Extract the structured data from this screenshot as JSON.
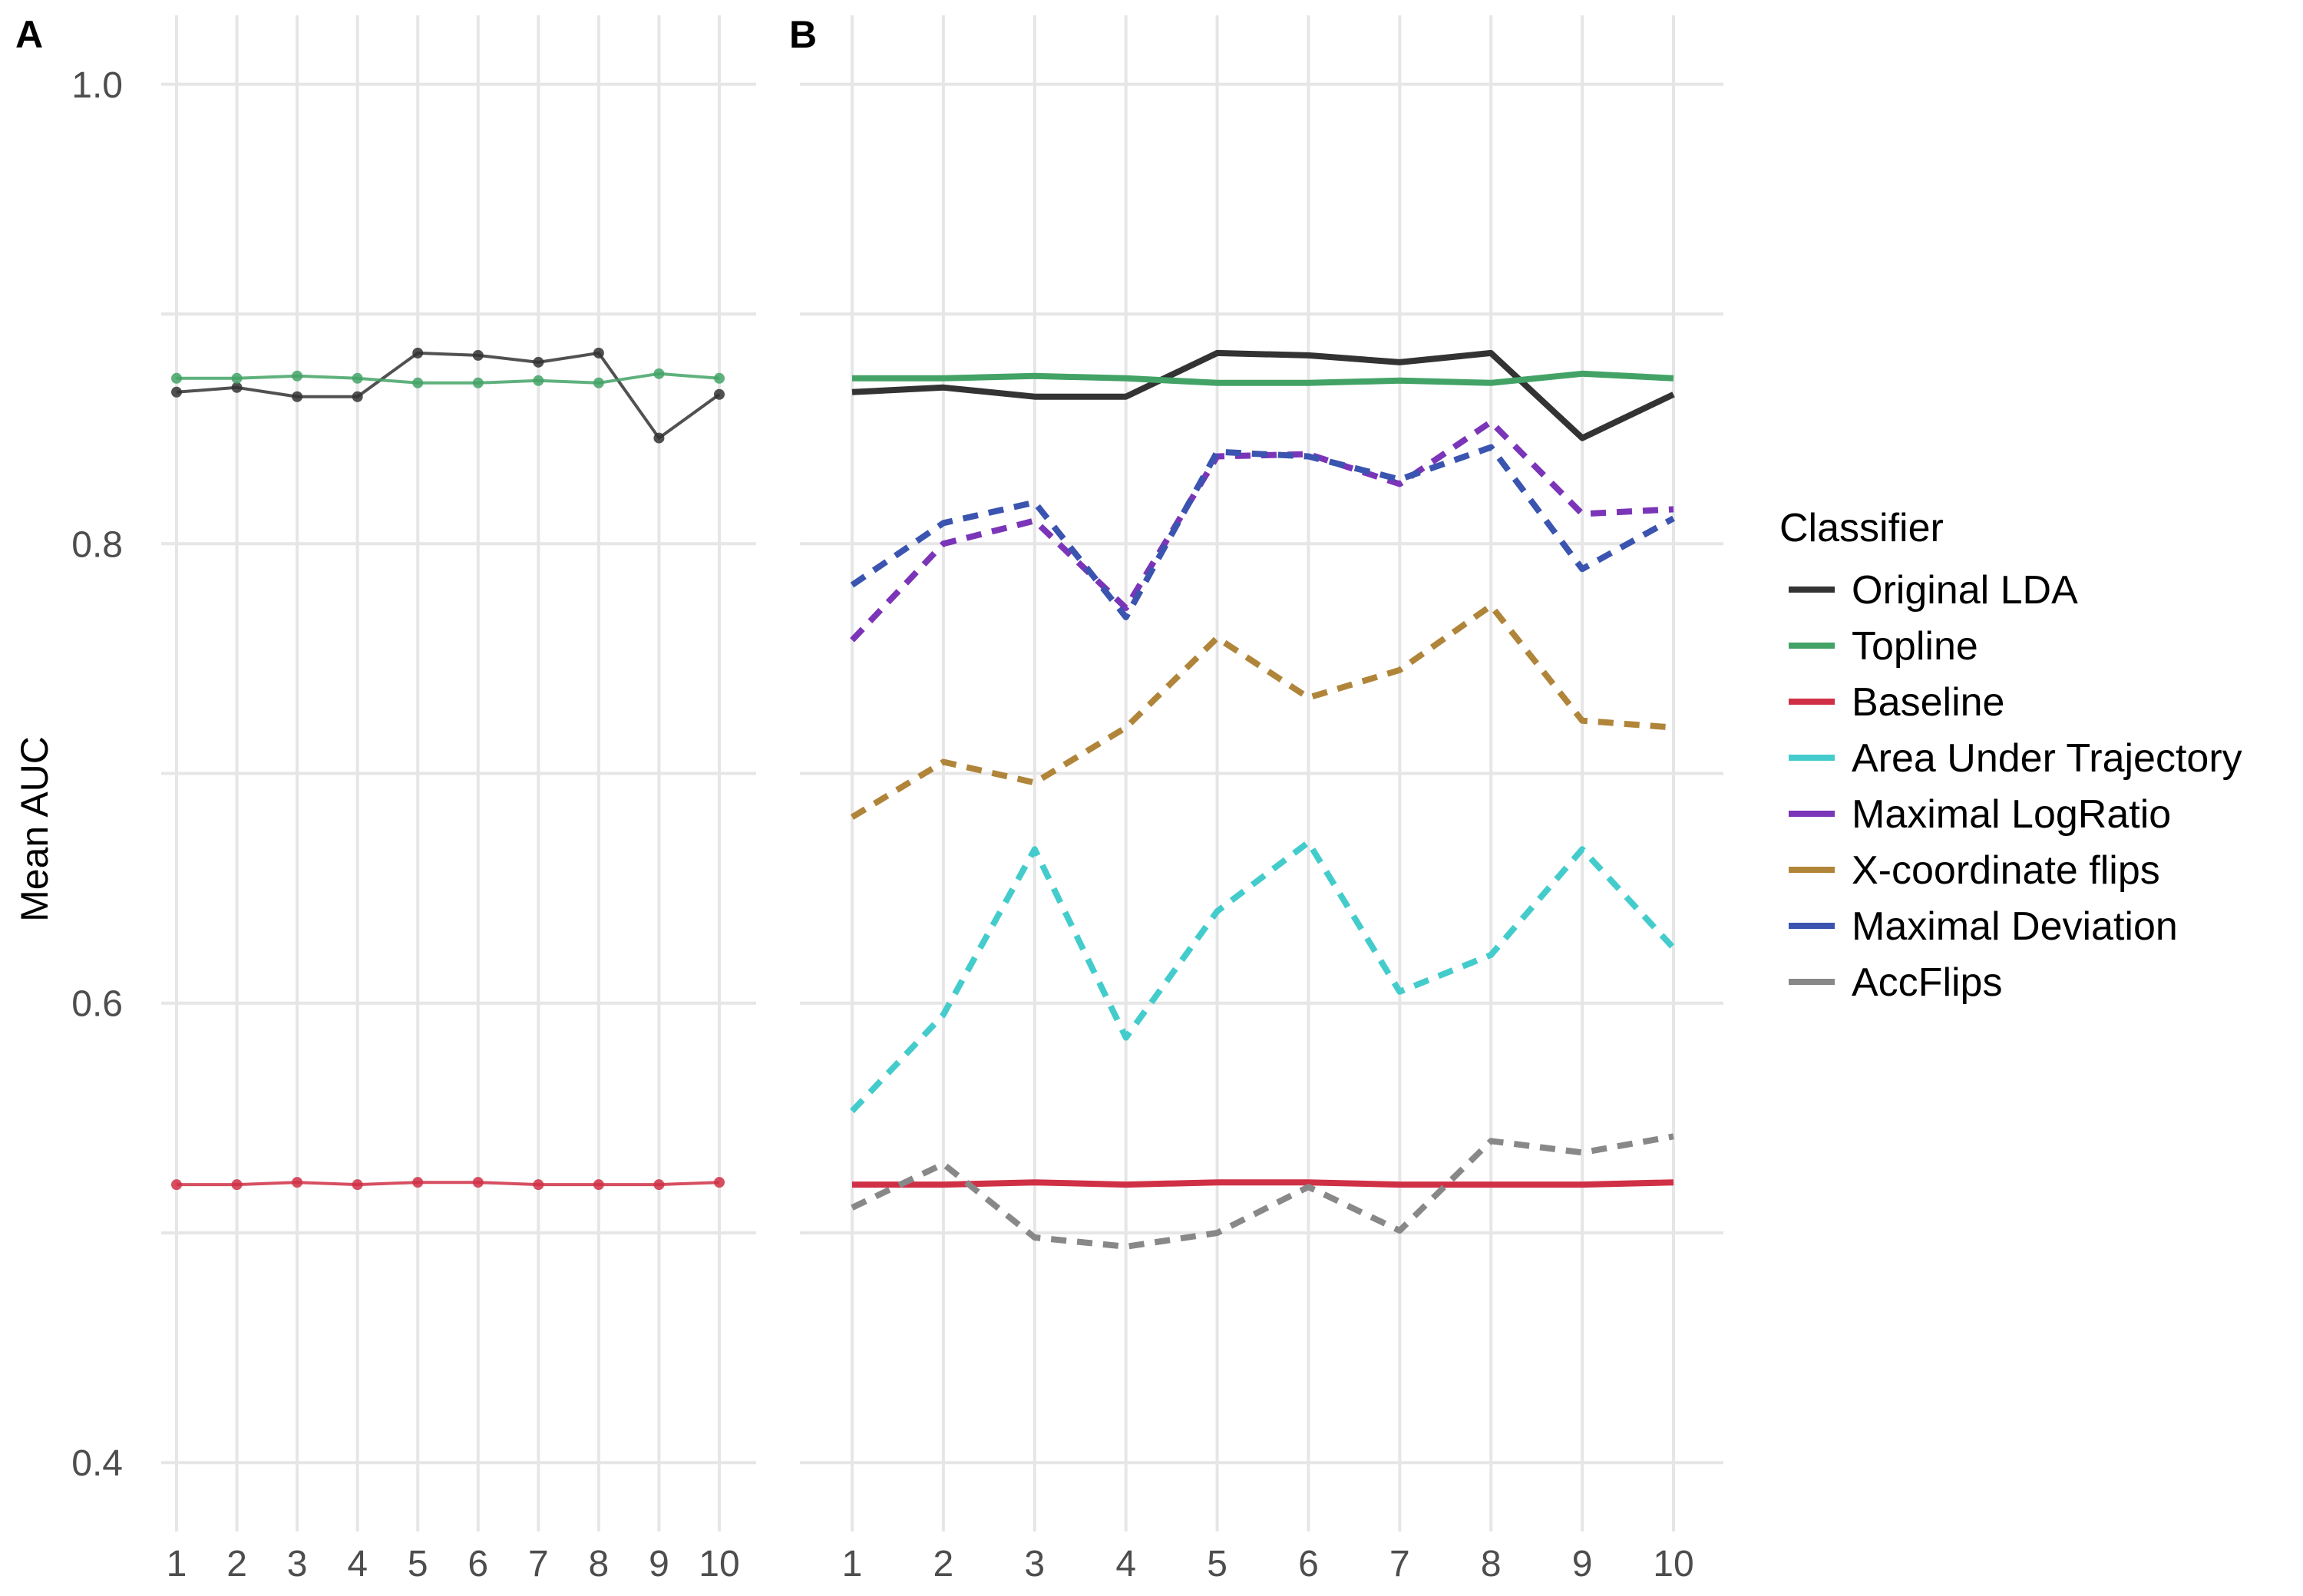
{
  "chart_data": [
    {
      "panel": "A",
      "type": "line",
      "xlabel": "",
      "ylabel": "Mean AUC",
      "ylim": [
        0.37,
        1.03
      ],
      "yticks": [
        0.4,
        0.6,
        0.8,
        1.0
      ],
      "ytick_labels": [
        "0.4",
        "0.6",
        "0.8",
        "1.0"
      ],
      "x": [
        1,
        2,
        3,
        4,
        5,
        6,
        7,
        8,
        9,
        10
      ],
      "xtick_labels": [
        "1",
        "2",
        "3",
        "4",
        "5",
        "6",
        "7",
        "8",
        "9",
        "10"
      ],
      "grid": true,
      "series": [
        {
          "name": "Original LDA",
          "color": "#333333",
          "values": [
            0.866,
            0.868,
            0.864,
            0.864,
            0.883,
            0.882,
            0.879,
            0.883,
            0.846,
            0.865
          ]
        },
        {
          "name": "Topline",
          "color": "#43a366",
          "values": [
            0.872,
            0.872,
            0.873,
            0.872,
            0.87,
            0.87,
            0.871,
            0.87,
            0.874,
            0.872
          ]
        },
        {
          "name": "Baseline",
          "color": "#d03045",
          "values": [
            0.521,
            0.521,
            0.522,
            0.521,
            0.522,
            0.522,
            0.521,
            0.521,
            0.521,
            0.522
          ]
        }
      ]
    },
    {
      "panel": "B",
      "type": "line",
      "xlabel": "",
      "ylabel": "",
      "ylim": [
        0.37,
        1.03
      ],
      "yticks": [
        0.4,
        0.6,
        0.8,
        1.0
      ],
      "x": [
        1,
        2,
        3,
        4,
        5,
        6,
        7,
        8,
        9,
        10
      ],
      "xtick_labels": [
        "1",
        "2",
        "3",
        "4",
        "5",
        "6",
        "7",
        "8",
        "9",
        "10"
      ],
      "grid": true,
      "legend_position": "right",
      "legend_title": "Classifier",
      "series": [
        {
          "name": "Original LDA",
          "color": "#333333",
          "dashed": false,
          "values": [
            0.866,
            0.868,
            0.864,
            0.864,
            0.883,
            0.882,
            0.879,
            0.883,
            0.846,
            0.865
          ]
        },
        {
          "name": "Topline",
          "color": "#43a366",
          "dashed": false,
          "values": [
            0.872,
            0.872,
            0.873,
            0.872,
            0.87,
            0.87,
            0.871,
            0.87,
            0.874,
            0.872
          ]
        },
        {
          "name": "Baseline",
          "color": "#d03045",
          "dashed": false,
          "values": [
            0.521,
            0.521,
            0.522,
            0.521,
            0.522,
            0.522,
            0.521,
            0.521,
            0.521,
            0.522
          ]
        },
        {
          "name": "Area Under Trajectory",
          "color": "#44cccc",
          "dashed": true,
          "values": [
            0.553,
            0.595,
            0.667,
            0.585,
            0.64,
            0.67,
            0.605,
            0.621,
            0.667,
            0.624
          ]
        },
        {
          "name": "Maximal LogRatio",
          "color": "#7b35b8",
          "dashed": true,
          "values": [
            0.758,
            0.8,
            0.81,
            0.772,
            0.838,
            0.839,
            0.826,
            0.853,
            0.813,
            0.815
          ]
        },
        {
          "name": "X-coordinate flips",
          "color": "#b0853a",
          "dashed": true,
          "values": [
            0.681,
            0.705,
            0.696,
            0.72,
            0.759,
            0.733,
            0.745,
            0.773,
            0.723,
            0.72
          ]
        },
        {
          "name": "Maximal Deviation",
          "color": "#3a54b0",
          "dashed": true,
          "values": [
            0.782,
            0.809,
            0.818,
            0.768,
            0.84,
            0.838,
            0.828,
            0.842,
            0.789,
            0.811
          ]
        },
        {
          "name": "AccFlips",
          "color": "#888888",
          "dashed": true,
          "values": [
            0.511,
            0.53,
            0.498,
            0.494,
            0.5,
            0.52,
            0.501,
            0.54,
            0.535,
            0.542
          ]
        }
      ]
    }
  ]
}
